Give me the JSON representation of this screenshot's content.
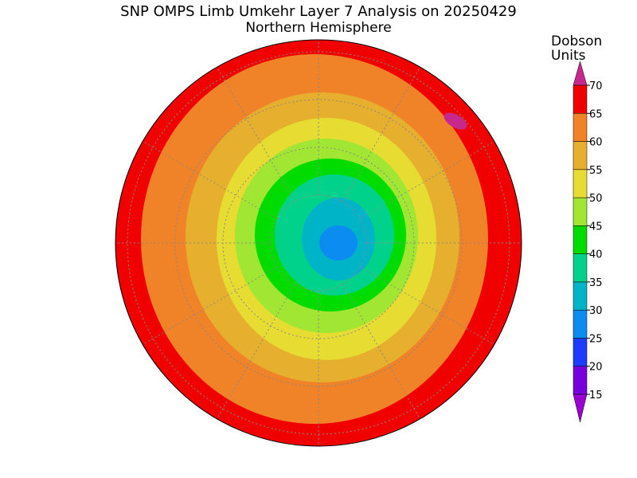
{
  "header": {
    "title": "SNP OMPS Limb Umkehr Layer 7 Analysis on 20250429",
    "subtitle": "Northern Hemisphere"
  },
  "colorbar": {
    "label_lines": [
      "Dobson",
      "Units"
    ],
    "ticks": [
      15,
      20,
      25,
      30,
      35,
      40,
      45,
      50,
      55,
      60,
      65,
      70
    ],
    "colors": [
      "#9b00d2",
      "#7800dc",
      "#1e3cff",
      "#0a8cf0",
      "#00b4c8",
      "#00d28c",
      "#00dc00",
      "#a0e632",
      "#e6dc32",
      "#e6af2d",
      "#f08228",
      "#f00000",
      "#c8288c"
    ]
  }
}
